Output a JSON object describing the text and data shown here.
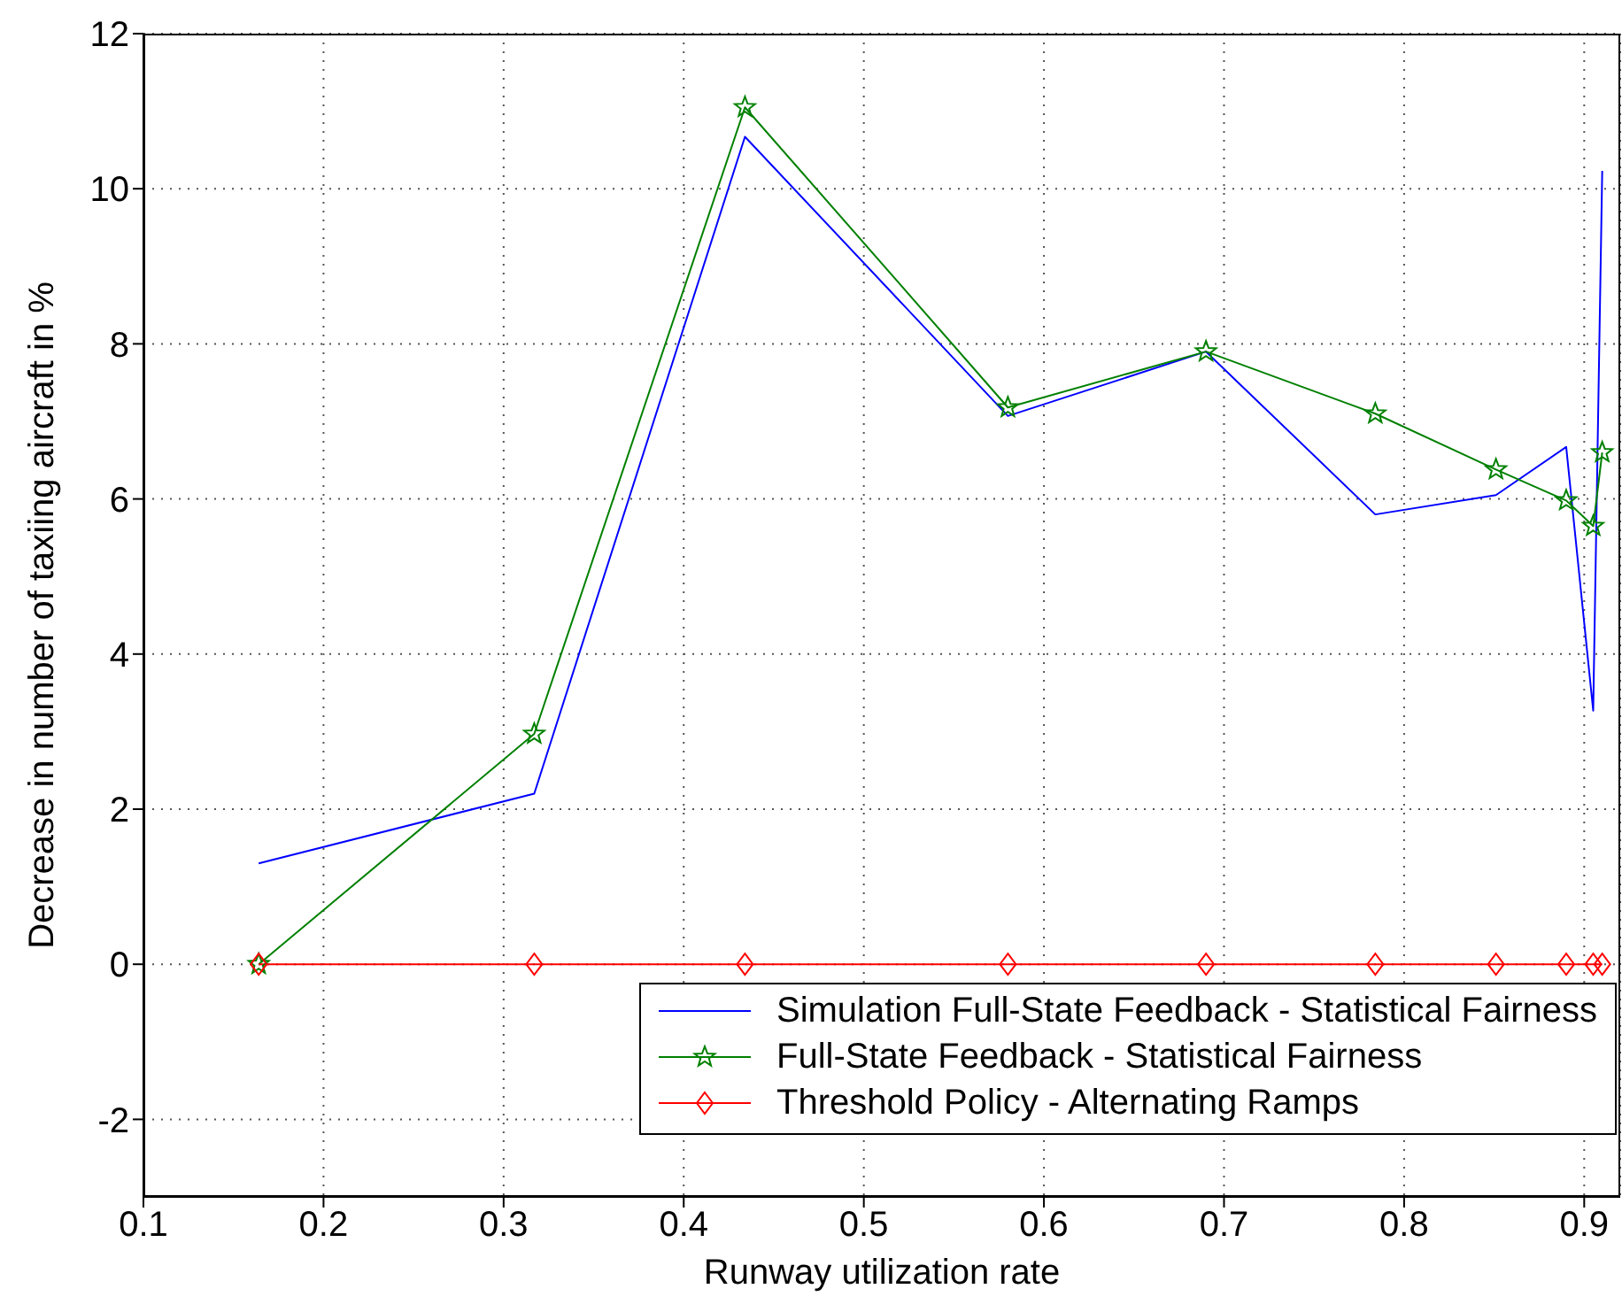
{
  "chart_data": {
    "type": "line",
    "xlabel": "Runway utilization rate",
    "ylabel": "Decrease in number of taxiing aircraft in %",
    "x": [
      0.164,
      0.317,
      0.434,
      0.58,
      0.69,
      0.784,
      0.851,
      0.89,
      0.905,
      0.91
    ],
    "series": [
      {
        "name": "Simulation Full-State Feedback - Statistical Fairness",
        "color": "#0000ff",
        "marker": "none",
        "values": [
          1.3,
          2.2,
          10.67,
          7.07,
          7.9,
          5.8,
          6.05,
          6.67,
          3.27,
          10.23
        ]
      },
      {
        "name": "Full-State Feedback - Statistical Fairness",
        "color": "#008000",
        "marker": "star",
        "values": [
          0,
          2.97,
          11.05,
          7.18,
          7.9,
          7.1,
          6.38,
          5.98,
          5.65,
          6.6
        ]
      },
      {
        "name": "Threshold Policy - Alternating Ramps",
        "color": "#ff0000",
        "marker": "diamond",
        "values": [
          0,
          0,
          0,
          0,
          0,
          0,
          0,
          0,
          0,
          0
        ]
      }
    ],
    "xlim": [
      0.1,
      0.92
    ],
    "xticks": [
      0.1,
      0.2,
      0.3,
      0.4,
      0.5,
      0.6,
      0.7,
      0.8,
      0.9
    ],
    "ylim": [
      -3,
      12
    ],
    "yticks": [
      -2,
      0,
      2,
      4,
      6,
      8,
      10,
      12
    ],
    "grid": true,
    "legend": "bottom right",
    "line_style": "solid"
  }
}
